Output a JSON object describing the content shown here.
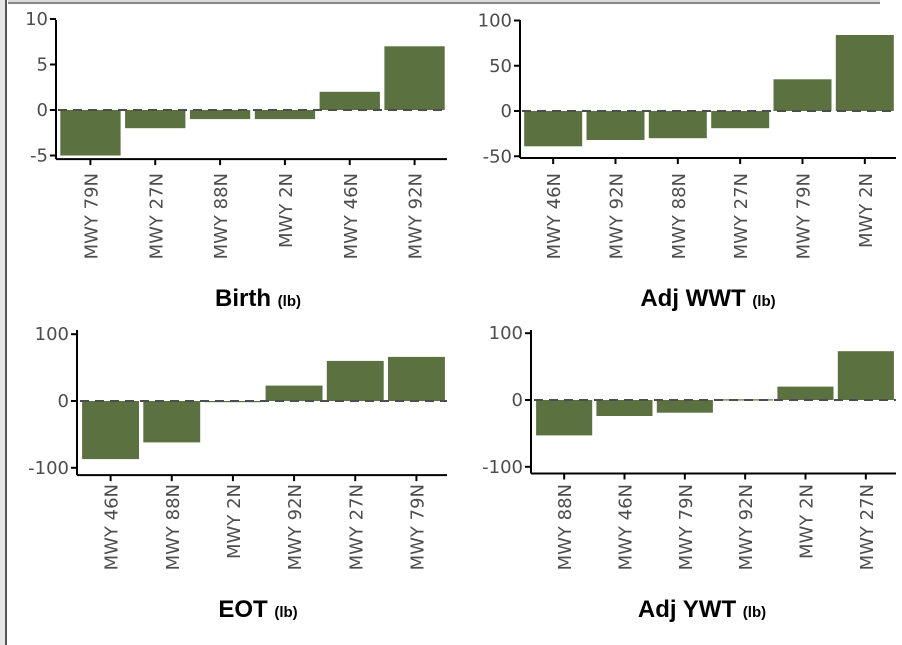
{
  "chart_data": [
    {
      "type": "bar",
      "title": "Birth",
      "unit": "(lb)",
      "categories": [
        "MWY 79N",
        "MWY 27N",
        "MWY 88N",
        "MWY 2N",
        "MWY 46N",
        "MWY 92N"
      ],
      "values": [
        -5,
        -2,
        -1,
        -1,
        2,
        7
      ],
      "ylim": [
        -5.4,
        10.8
      ],
      "yticks": [
        -5,
        0,
        5,
        10
      ],
      "reference_line": 0,
      "bar_color": "#5b7140"
    },
    {
      "type": "bar",
      "title": "Adj WWT",
      "unit": "(lb)",
      "categories": [
        "MWY 46N",
        "MWY 92N",
        "MWY 88N",
        "MWY 27N",
        "MWY 79N",
        "MWY 2N"
      ],
      "values": [
        -39,
        -32,
        -30,
        -19,
        35,
        84
      ],
      "ylim": [
        -52,
        103
      ],
      "yticks": [
        -50,
        0,
        50,
        100
      ],
      "reference_line": 0,
      "bar_color": "#5b7140"
    },
    {
      "type": "bar",
      "title": "EOT",
      "unit": "(lb)",
      "categories": [
        "MWY 46N",
        "MWY 88N",
        "MWY 2N",
        "MWY 92N",
        "MWY 27N",
        "MWY 79N"
      ],
      "values": [
        -87,
        -62,
        -1,
        23,
        60,
        66
      ],
      "ylim": [
        -111,
        105
      ],
      "yticks": [
        -100,
        0,
        100
      ],
      "reference_line": 0,
      "bar_color": "#5b7140"
    },
    {
      "type": "bar",
      "title": "Adj YWT",
      "unit": "(lb)",
      "categories": [
        "MWY 88N",
        "MWY 46N",
        "MWY 79N",
        "MWY 92N",
        "MWY 2N",
        "MWY 27N"
      ],
      "values": [
        -53,
        -24,
        -19,
        1,
        20,
        73
      ],
      "ylim": [
        -110,
        105
      ],
      "yticks": [
        -100,
        0,
        100
      ],
      "reference_line": 0,
      "bar_color": "#5b7140"
    }
  ]
}
